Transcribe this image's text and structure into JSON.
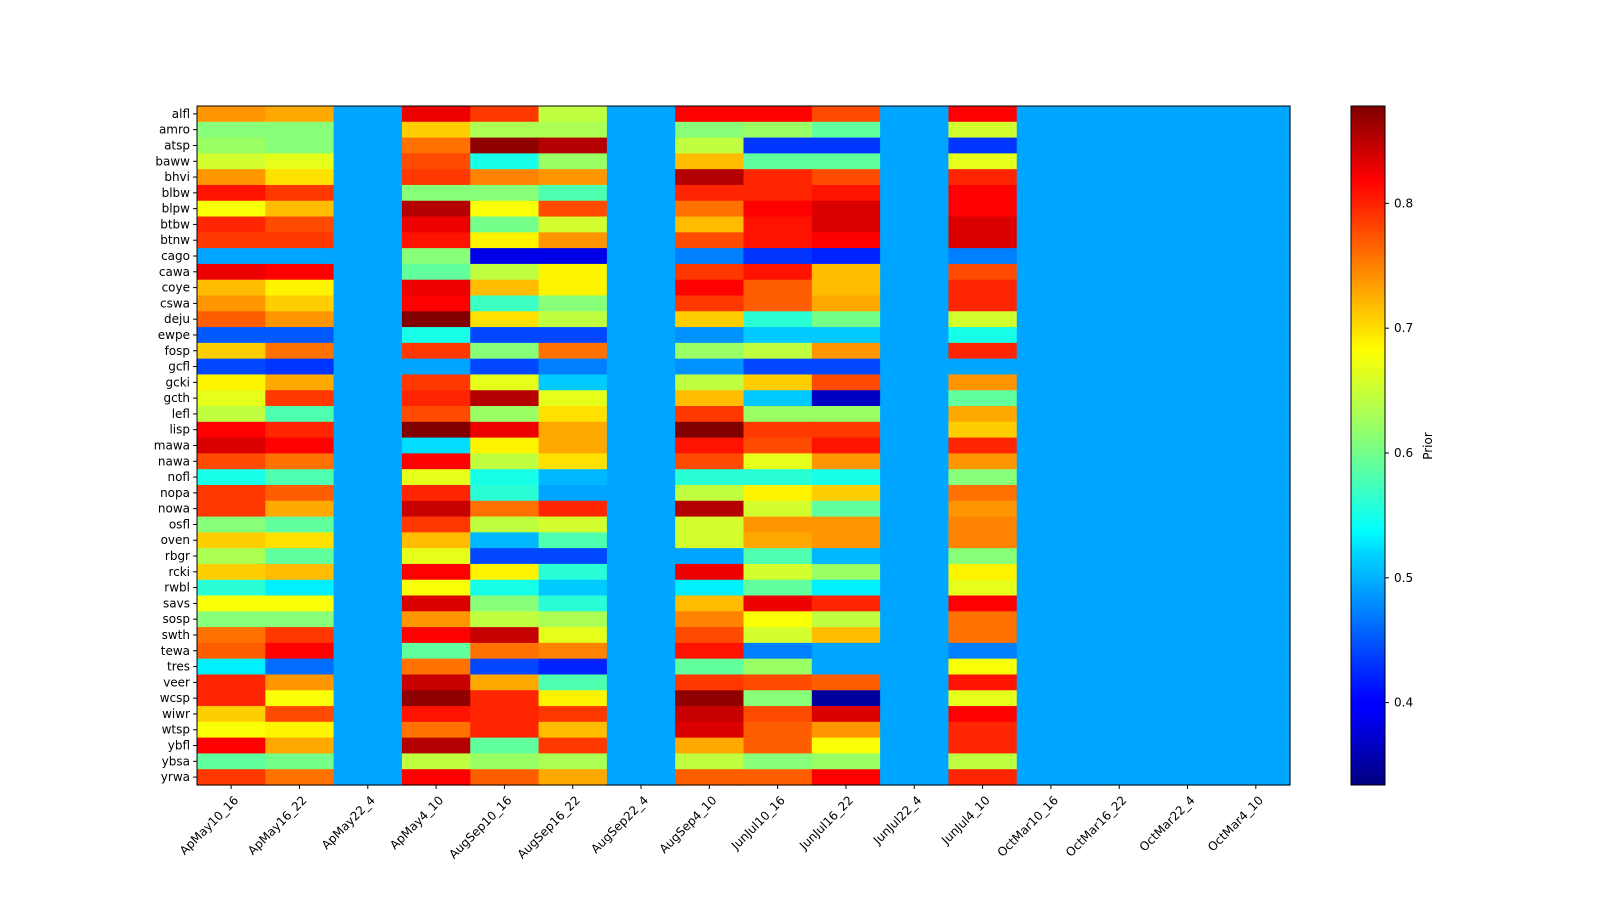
{
  "chart_data": {
    "type": "heatmap",
    "title": "",
    "xlabel": "",
    "ylabel": "",
    "colormap": "jet",
    "colorbar": {
      "label": "Prior",
      "ticks": [
        0.4,
        0.5,
        0.6,
        0.7,
        0.8
      ],
      "tick_labels": [
        "0.4",
        "0.5",
        "0.6",
        "0.7",
        "0.8"
      ],
      "range": [
        0.334,
        0.878
      ]
    },
    "x": [
      "ApMay10_16",
      "ApMay16_22",
      "ApMay22_4",
      "ApMay4_10",
      "AugSep10_16",
      "AugSep16_22",
      "AugSep22_4",
      "AugSep4_10",
      "JunJul10_16",
      "JunJul16_22",
      "JunJul22_4",
      "JunJul4_10",
      "OctMar10_16",
      "OctMar16_22",
      "OctMar22_4",
      "OctMar4_10"
    ],
    "y": [
      "alfl",
      "amro",
      "atsp",
      "baww",
      "bhvi",
      "blbw",
      "blpw",
      "btbw",
      "btnw",
      "cago",
      "cawa",
      "coye",
      "cswa",
      "deju",
      "ewpe",
      "fosp",
      "gcfl",
      "gcki",
      "gcth",
      "lefl",
      "lisp",
      "mawa",
      "nawa",
      "nofl",
      "nopa",
      "nowa",
      "osfl",
      "oven",
      "rbgr",
      "rcki",
      "rwbl",
      "savs",
      "sosp",
      "swth",
      "tewa",
      "tres",
      "veer",
      "wcsp",
      "wiwr",
      "wtsp",
      "ybfl",
      "ybsa",
      "yrwa"
    ],
    "values": [
      [
        0.73,
        0.72,
        0.49,
        0.82,
        0.78,
        0.64,
        0.49,
        0.81,
        0.81,
        0.77,
        0.49,
        0.81,
        0.49,
        0.49,
        0.49,
        0.49
      ],
      [
        0.61,
        0.61,
        0.49,
        0.7,
        0.63,
        0.63,
        0.49,
        0.61,
        0.62,
        0.59,
        0.49,
        0.65,
        0.49,
        0.49,
        0.49,
        0.49
      ],
      [
        0.62,
        0.61,
        0.49,
        0.75,
        0.87,
        0.85,
        0.49,
        0.64,
        0.43,
        0.43,
        0.49,
        0.43,
        0.49,
        0.49,
        0.49,
        0.49
      ],
      [
        0.65,
        0.66,
        0.49,
        0.77,
        0.55,
        0.62,
        0.49,
        0.71,
        0.59,
        0.59,
        0.49,
        0.66,
        0.49,
        0.49,
        0.49,
        0.49
      ],
      [
        0.73,
        0.69,
        0.49,
        0.78,
        0.74,
        0.73,
        0.49,
        0.85,
        0.79,
        0.77,
        0.49,
        0.79,
        0.49,
        0.49,
        0.49,
        0.49
      ],
      [
        0.8,
        0.78,
        0.49,
        0.61,
        0.61,
        0.58,
        0.49,
        0.79,
        0.79,
        0.8,
        0.49,
        0.81,
        0.49,
        0.49,
        0.49,
        0.49
      ],
      [
        0.67,
        0.71,
        0.49,
        0.85,
        0.67,
        0.77,
        0.49,
        0.75,
        0.81,
        0.83,
        0.49,
        0.81,
        0.49,
        0.49,
        0.49,
        0.49
      ],
      [
        0.79,
        0.77,
        0.49,
        0.82,
        0.6,
        0.65,
        0.49,
        0.71,
        0.8,
        0.83,
        0.49,
        0.83,
        0.49,
        0.49,
        0.49,
        0.49
      ],
      [
        0.78,
        0.78,
        0.49,
        0.8,
        0.68,
        0.73,
        0.49,
        0.77,
        0.8,
        0.81,
        0.49,
        0.83,
        0.49,
        0.49,
        0.49,
        0.49
      ],
      [
        0.49,
        0.49,
        0.49,
        0.61,
        0.39,
        0.39,
        0.49,
        0.47,
        0.43,
        0.42,
        0.49,
        0.47,
        0.49,
        0.49,
        0.49,
        0.49
      ],
      [
        0.82,
        0.81,
        0.49,
        0.59,
        0.64,
        0.68,
        0.49,
        0.78,
        0.8,
        0.71,
        0.49,
        0.77,
        0.49,
        0.49,
        0.49,
        0.49
      ],
      [
        0.71,
        0.68,
        0.49,
        0.82,
        0.71,
        0.68,
        0.49,
        0.81,
        0.76,
        0.71,
        0.49,
        0.79,
        0.49,
        0.49,
        0.49,
        0.49
      ],
      [
        0.73,
        0.7,
        0.49,
        0.81,
        0.57,
        0.61,
        0.49,
        0.78,
        0.76,
        0.72,
        0.49,
        0.79,
        0.49,
        0.49,
        0.49,
        0.49
      ],
      [
        0.76,
        0.73,
        0.49,
        0.88,
        0.69,
        0.64,
        0.49,
        0.7,
        0.56,
        0.6,
        0.49,
        0.65,
        0.49,
        0.49,
        0.49,
        0.49
      ],
      [
        0.45,
        0.45,
        0.49,
        0.55,
        0.44,
        0.44,
        0.49,
        0.48,
        0.51,
        0.51,
        0.49,
        0.55,
        0.49,
        0.49,
        0.49,
        0.49
      ],
      [
        0.7,
        0.75,
        0.49,
        0.78,
        0.61,
        0.75,
        0.49,
        0.62,
        0.64,
        0.73,
        0.49,
        0.79,
        0.49,
        0.49,
        0.49,
        0.49
      ],
      [
        0.44,
        0.43,
        0.49,
        0.49,
        0.44,
        0.47,
        0.49,
        0.48,
        0.44,
        0.44,
        0.49,
        0.49,
        0.49,
        0.49,
        0.49,
        0.49
      ],
      [
        0.68,
        0.72,
        0.49,
        0.78,
        0.66,
        0.51,
        0.49,
        0.64,
        0.7,
        0.77,
        0.49,
        0.73,
        0.49,
        0.49,
        0.49,
        0.49
      ],
      [
        0.66,
        0.78,
        0.49,
        0.79,
        0.85,
        0.66,
        0.49,
        0.71,
        0.51,
        0.37,
        0.49,
        0.59,
        0.49,
        0.49,
        0.49,
        0.49
      ],
      [
        0.64,
        0.58,
        0.49,
        0.77,
        0.62,
        0.69,
        0.49,
        0.78,
        0.62,
        0.62,
        0.49,
        0.72,
        0.49,
        0.49,
        0.49,
        0.49
      ],
      [
        0.81,
        0.79,
        0.49,
        0.88,
        0.82,
        0.72,
        0.49,
        0.88,
        0.78,
        0.78,
        0.49,
        0.7,
        0.49,
        0.49,
        0.49,
        0.49
      ],
      [
        0.83,
        0.81,
        0.49,
        0.52,
        0.68,
        0.72,
        0.49,
        0.8,
        0.77,
        0.8,
        0.49,
        0.79,
        0.49,
        0.49,
        0.49,
        0.49
      ],
      [
        0.77,
        0.75,
        0.49,
        0.81,
        0.64,
        0.69,
        0.49,
        0.77,
        0.66,
        0.73,
        0.49,
        0.73,
        0.49,
        0.49,
        0.49,
        0.49
      ],
      [
        0.55,
        0.58,
        0.49,
        0.66,
        0.55,
        0.5,
        0.49,
        0.56,
        0.56,
        0.55,
        0.49,
        0.61,
        0.49,
        0.49,
        0.49,
        0.49
      ],
      [
        0.78,
        0.76,
        0.49,
        0.79,
        0.56,
        0.49,
        0.49,
        0.64,
        0.68,
        0.7,
        0.49,
        0.75,
        0.49,
        0.49,
        0.49,
        0.49
      ],
      [
        0.78,
        0.72,
        0.49,
        0.84,
        0.75,
        0.79,
        0.49,
        0.85,
        0.65,
        0.59,
        0.49,
        0.73,
        0.49,
        0.49,
        0.49,
        0.49
      ],
      [
        0.61,
        0.59,
        0.49,
        0.78,
        0.64,
        0.65,
        0.49,
        0.65,
        0.73,
        0.73,
        0.49,
        0.74,
        0.49,
        0.49,
        0.49,
        0.49
      ],
      [
        0.7,
        0.69,
        0.49,
        0.71,
        0.5,
        0.58,
        0.49,
        0.65,
        0.72,
        0.73,
        0.49,
        0.74,
        0.49,
        0.49,
        0.49,
        0.49
      ],
      [
        0.63,
        0.59,
        0.49,
        0.66,
        0.44,
        0.44,
        0.49,
        0.49,
        0.58,
        0.5,
        0.49,
        0.61,
        0.49,
        0.49,
        0.49,
        0.49
      ],
      [
        0.7,
        0.71,
        0.49,
        0.81,
        0.68,
        0.56,
        0.49,
        0.82,
        0.65,
        0.62,
        0.49,
        0.68,
        0.49,
        0.49,
        0.49,
        0.49
      ],
      [
        0.56,
        0.53,
        0.49,
        0.67,
        0.55,
        0.51,
        0.49,
        0.53,
        0.59,
        0.53,
        0.49,
        0.66,
        0.49,
        0.49,
        0.49,
        0.49
      ],
      [
        0.67,
        0.67,
        0.49,
        0.83,
        0.61,
        0.56,
        0.49,
        0.71,
        0.82,
        0.79,
        0.49,
        0.81,
        0.49,
        0.49,
        0.49,
        0.49
      ],
      [
        0.61,
        0.61,
        0.49,
        0.73,
        0.64,
        0.63,
        0.49,
        0.74,
        0.67,
        0.64,
        0.49,
        0.75,
        0.49,
        0.49,
        0.49,
        0.49
      ],
      [
        0.75,
        0.78,
        0.49,
        0.81,
        0.84,
        0.66,
        0.49,
        0.77,
        0.65,
        0.71,
        0.49,
        0.75,
        0.49,
        0.49,
        0.49,
        0.49
      ],
      [
        0.76,
        0.81,
        0.49,
        0.59,
        0.75,
        0.74,
        0.49,
        0.8,
        0.47,
        0.49,
        0.49,
        0.47,
        0.49,
        0.49,
        0.49,
        0.49
      ],
      [
        0.53,
        0.46,
        0.49,
        0.75,
        0.44,
        0.42,
        0.49,
        0.59,
        0.62,
        0.49,
        0.49,
        0.67,
        0.49,
        0.49,
        0.49,
        0.49
      ],
      [
        0.79,
        0.73,
        0.49,
        0.84,
        0.72,
        0.58,
        0.49,
        0.78,
        0.77,
        0.76,
        0.49,
        0.8,
        0.49,
        0.49,
        0.49,
        0.49
      ],
      [
        0.79,
        0.67,
        0.49,
        0.87,
        0.79,
        0.68,
        0.49,
        0.87,
        0.61,
        0.35,
        0.49,
        0.66,
        0.49,
        0.49,
        0.49,
        0.49
      ],
      [
        0.7,
        0.77,
        0.49,
        0.8,
        0.79,
        0.78,
        0.49,
        0.84,
        0.77,
        0.83,
        0.49,
        0.81,
        0.49,
        0.49,
        0.49,
        0.49
      ],
      [
        0.67,
        0.68,
        0.49,
        0.75,
        0.79,
        0.71,
        0.49,
        0.83,
        0.76,
        0.73,
        0.49,
        0.79,
        0.49,
        0.49,
        0.49,
        0.49
      ],
      [
        0.81,
        0.72,
        0.49,
        0.85,
        0.59,
        0.78,
        0.49,
        0.72,
        0.76,
        0.67,
        0.49,
        0.79,
        0.49,
        0.49,
        0.49,
        0.49
      ],
      [
        0.59,
        0.6,
        0.49,
        0.64,
        0.62,
        0.63,
        0.49,
        0.64,
        0.61,
        0.62,
        0.49,
        0.64,
        0.49,
        0.49,
        0.49,
        0.49
      ],
      [
        0.78,
        0.75,
        0.49,
        0.81,
        0.76,
        0.72,
        0.49,
        0.76,
        0.76,
        0.81,
        0.49,
        0.79,
        0.49,
        0.49,
        0.49,
        0.49
      ]
    ]
  }
}
